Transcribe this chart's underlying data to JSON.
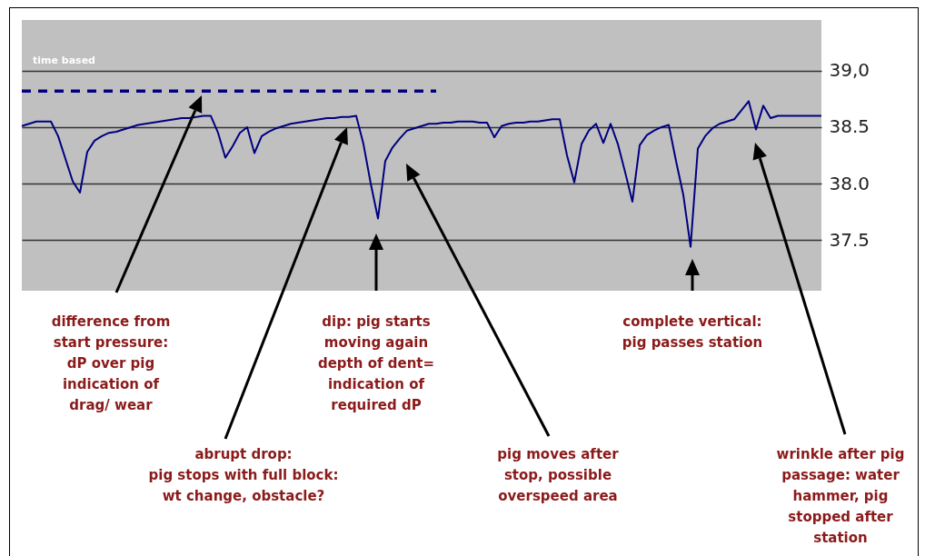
{
  "chart_data": {
    "type": "line",
    "categories": [
      null,
      null,
      null,
      null,
      null,
      null,
      null,
      null,
      null,
      null,
      null,
      null,
      null,
      null,
      null,
      null,
      null,
      null,
      null,
      null,
      null,
      null,
      null,
      null,
      null,
      null,
      null,
      null,
      null,
      null,
      null,
      null,
      null,
      null,
      null,
      null,
      null,
      null,
      null,
      null,
      null,
      null,
      null,
      null,
      null,
      null,
      null,
      null,
      null,
      null,
      null,
      null,
      null,
      null,
      null,
      null,
      null,
      null,
      null,
      null,
      null,
      null,
      null,
      null,
      null,
      null,
      null,
      null,
      null,
      null,
      null,
      null,
      null,
      null,
      null,
      null,
      null,
      null,
      null,
      null,
      null,
      null,
      null,
      null,
      null,
      null,
      null,
      null,
      null,
      null,
      null,
      null,
      null,
      null,
      null,
      null,
      null,
      null,
      null,
      null,
      null,
      null,
      null,
      null,
      null,
      null,
      null,
      null,
      null,
      null,
      null
    ],
    "series": [
      {
        "color": "#000080",
        "line_style": "solid",
        "values": [
          38.51,
          38.53,
          38.55,
          38.55,
          38.55,
          38.42,
          38.22,
          38.02,
          37.92,
          38.28,
          38.38,
          38.42,
          38.45,
          38.46,
          38.48,
          38.5,
          38.52,
          38.53,
          38.54,
          38.55,
          38.56,
          38.57,
          38.58,
          38.58,
          38.59,
          38.6,
          38.6,
          38.45,
          38.23,
          38.33,
          38.45,
          38.5,
          38.27,
          38.42,
          38.46,
          38.49,
          38.51,
          38.53,
          38.54,
          38.55,
          38.56,
          38.57,
          38.58,
          38.58,
          38.59,
          38.59,
          38.6,
          38.35,
          38.0,
          37.69,
          38.2,
          38.32,
          38.4,
          38.47,
          38.49,
          38.51,
          38.53,
          38.53,
          38.54,
          38.54,
          38.55,
          38.55,
          38.55,
          38.54,
          38.54,
          38.41,
          38.51,
          38.53,
          38.54,
          38.54,
          38.55,
          38.55,
          38.56,
          38.57,
          38.57,
          38.25,
          38.01,
          38.35,
          38.47,
          38.53,
          38.36,
          38.53,
          38.35,
          38.1,
          37.84,
          38.34,
          38.43,
          38.47,
          38.5,
          38.52,
          38.2,
          37.9,
          37.44,
          38.31,
          38.42,
          38.49,
          38.53,
          38.55,
          38.57,
          38.65,
          38.73,
          38.48,
          38.69,
          38.58,
          38.6,
          38.6,
          38.6,
          38.6,
          38.6,
          38.6,
          38.6
        ]
      },
      {
        "color": "#000080",
        "line_style": "dashed",
        "values": [
          38.82,
          38.82,
          38.82,
          38.82,
          38.82,
          38.82,
          38.82,
          38.82,
          38.82,
          38.82,
          38.82,
          38.82,
          38.82,
          38.82,
          38.82,
          38.82,
          38.82,
          38.82,
          38.82,
          38.82,
          38.82,
          38.82,
          38.82,
          38.82,
          38.82,
          38.82,
          38.82,
          38.82,
          38.82,
          38.82,
          38.82,
          38.82,
          38.82,
          38.82,
          38.82,
          38.82,
          38.82,
          38.82,
          38.82,
          38.82,
          38.82,
          38.82,
          38.82,
          38.82,
          38.82,
          38.82,
          38.82,
          38.82,
          38.82,
          38.82,
          38.82,
          38.82,
          38.82,
          38.82,
          38.82,
          38.82,
          38.82,
          38.82,
          null,
          null,
          null,
          null,
          null,
          null,
          null,
          null,
          null,
          null,
          null,
          null,
          null,
          null,
          null,
          null,
          null,
          null,
          null,
          null,
          null,
          null,
          null,
          null,
          null,
          null,
          null,
          null,
          null,
          null,
          null,
          null,
          null,
          null,
          null,
          null,
          null,
          null,
          null,
          null,
          null,
          null,
          null,
          null,
          null,
          null,
          null,
          null,
          null,
          null,
          null,
          null,
          null
        ]
      }
    ],
    "ylim": [
      37.05,
      39.45
    ],
    "yticks": [
      {
        "value": 39,
        "label": "39,0"
      },
      38.5,
      {
        "value": 38,
        "label": "38.0"
      },
      37.5
    ],
    "grid": "y",
    "annotations": [
      "time based",
      "difference from\nstart pressure:\ndP over pig\nindication of\ndrag/ wear",
      "abrupt drop:\npig stops with full block:\nwt change, obstacle?",
      "dip: pig starts\nmoving again\ndepth of dent=\nindication of\nrequired dP",
      "pig moves after\nstop, possible\noverspeed area",
      "complete vertical:\npig passes station",
      "wrinkle after pig\npassage: water\nhammer, pig\nstopped after\nstation"
    ]
  }
}
